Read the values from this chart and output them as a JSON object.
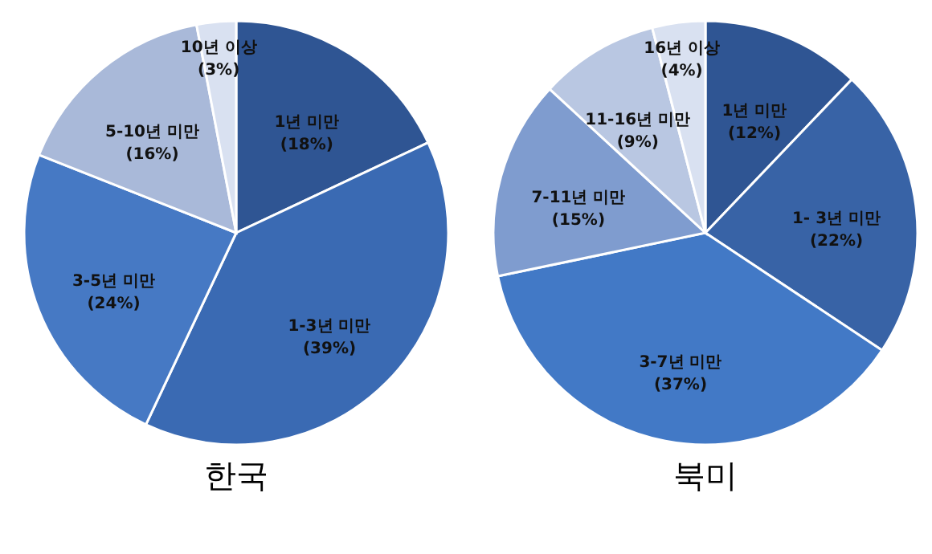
{
  "chart_data": [
    {
      "type": "pie",
      "title": "한국",
      "categories": [
        "1년 미만",
        "1-3년 미만",
        "3-5년 미만",
        "5-10년 미만",
        "10년 이상"
      ],
      "values": [
        18,
        39,
        24,
        16,
        3
      ],
      "value_labels": [
        "(18%)",
        "(39%)",
        "(24%)",
        "(16%)",
        "(3%)"
      ],
      "colors": [
        "#2f5593",
        "#3a6ab3",
        "#4679c4",
        "#a9b9d9",
        "#d9e1f1"
      ]
    },
    {
      "type": "pie",
      "title": "북미",
      "categories": [
        "1년 미만",
        "1- 3년 미만",
        "3-7년 미만",
        "7-11년 미만",
        "11-16년 미만",
        "16년 이상"
      ],
      "values": [
        12,
        22,
        37,
        15,
        9,
        4
      ],
      "value_labels": [
        "(12%)",
        "(22%)",
        "(37%)",
        "(15%)",
        "(9%)",
        "(4%)"
      ],
      "colors": [
        "#2f5593",
        "#3863a6",
        "#4279c6",
        "#7f9ccf",
        "#b9c7e2",
        "#d9e1f1"
      ]
    }
  ]
}
